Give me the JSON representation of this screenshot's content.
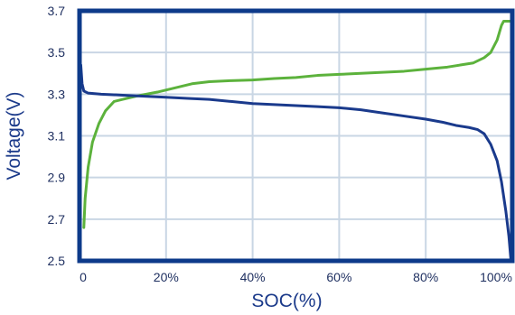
{
  "chart_data": {
    "type": "line",
    "title": "",
    "xlabel": "SOC(%)",
    "ylabel": "Voltage(V)",
    "xlim": [
      0,
      100
    ],
    "ylim": [
      2.5,
      3.7
    ],
    "grid": true,
    "x_ticks": [
      0,
      20,
      40,
      60,
      80,
      100
    ],
    "x_tick_labels": [
      "0",
      "20%",
      "40%",
      "60%",
      "80%",
      "100%"
    ],
    "y_ticks": [
      2.5,
      2.7,
      2.9,
      3.1,
      3.3,
      3.5,
      3.7
    ],
    "y_tick_labels": [
      "2.5",
      "2.7",
      "2.9",
      "3.1",
      "3.3",
      "3.5",
      "3.7"
    ],
    "colors": {
      "frame": "#0d3a8a",
      "grid": "#c9d6e4",
      "text": "#1d2e5f"
    },
    "series": [
      {
        "color": "#5cb23c",
        "points": [
          [
            1.0,
            2.66
          ],
          [
            1.3,
            2.8
          ],
          [
            2.0,
            2.95
          ],
          [
            3.0,
            3.07
          ],
          [
            4.5,
            3.16
          ],
          [
            6.0,
            3.22
          ],
          [
            8.0,
            3.265
          ],
          [
            10.0,
            3.275
          ],
          [
            13.0,
            3.29
          ],
          [
            18.0,
            3.31
          ],
          [
            22.0,
            3.33
          ],
          [
            26.0,
            3.35
          ],
          [
            30.0,
            3.36
          ],
          [
            35.0,
            3.365
          ],
          [
            40.0,
            3.368
          ],
          [
            45.0,
            3.375
          ],
          [
            50.0,
            3.38
          ],
          [
            55.0,
            3.39
          ],
          [
            60.0,
            3.395
          ],
          [
            65.0,
            3.4
          ],
          [
            70.0,
            3.405
          ],
          [
            75.0,
            3.41
          ],
          [
            80.0,
            3.42
          ],
          [
            85.0,
            3.43
          ],
          [
            88.0,
            3.44
          ],
          [
            91.0,
            3.45
          ],
          [
            93.5,
            3.475
          ],
          [
            95.0,
            3.5
          ],
          [
            96.5,
            3.56
          ],
          [
            97.5,
            3.63
          ],
          [
            98.0,
            3.65
          ],
          [
            100.0,
            3.65
          ]
        ]
      },
      {
        "color": "#1a3a8c",
        "points": [
          [
            0.3,
            3.44
          ],
          [
            0.6,
            3.35
          ],
          [
            1.0,
            3.315
          ],
          [
            2.0,
            3.305
          ],
          [
            5.0,
            3.3
          ],
          [
            10.0,
            3.295
          ],
          [
            15.0,
            3.29
          ],
          [
            20.0,
            3.285
          ],
          [
            25.0,
            3.28
          ],
          [
            30.0,
            3.275
          ],
          [
            35.0,
            3.265
          ],
          [
            40.0,
            3.255
          ],
          [
            45.0,
            3.25
          ],
          [
            50.0,
            3.245
          ],
          [
            55.0,
            3.24
          ],
          [
            60.0,
            3.235
          ],
          [
            65.0,
            3.225
          ],
          [
            70.0,
            3.21
          ],
          [
            75.0,
            3.195
          ],
          [
            80.0,
            3.18
          ],
          [
            84.0,
            3.165
          ],
          [
            87.0,
            3.15
          ],
          [
            90.0,
            3.14
          ],
          [
            92.0,
            3.13
          ],
          [
            93.5,
            3.11
          ],
          [
            95.0,
            3.06
          ],
          [
            96.5,
            2.98
          ],
          [
            97.5,
            2.88
          ],
          [
            98.5,
            2.74
          ],
          [
            99.2,
            2.62
          ],
          [
            99.7,
            2.5
          ]
        ]
      }
    ]
  }
}
